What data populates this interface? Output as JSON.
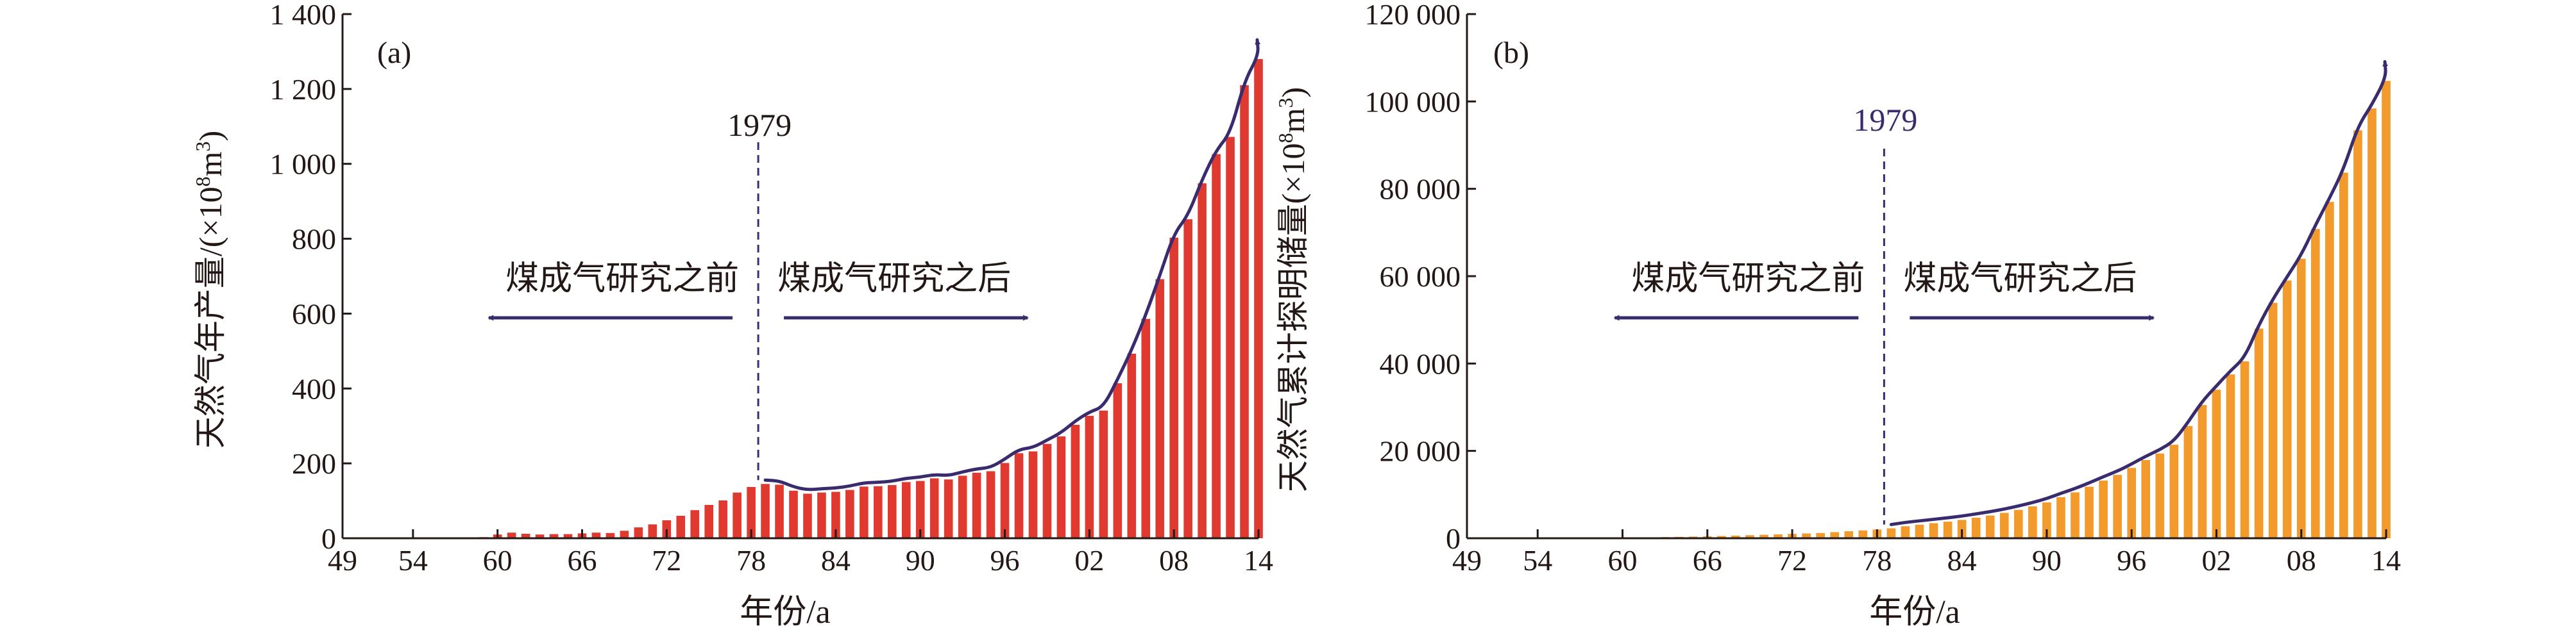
{
  "chart_data": [
    {
      "type": "bar",
      "panel_label": "(a)",
      "title": "",
      "xlabel": "年份/a",
      "ylabel": "天然气年产量/(×10⁸m³)",
      "ylabel_parts": {
        "pre": "天然气年产量/(×10",
        "sup": "8",
        "mid": "m",
        "sup2": "3",
        "post": ")"
      },
      "ylim": [
        0,
        1400
      ],
      "yticks": [
        0,
        200,
        400,
        600,
        800,
        1000,
        1200,
        1400
      ],
      "ytick_labels": [
        "0",
        "200",
        "400",
        "600",
        "800",
        "1 000",
        "1 200",
        "1 400"
      ],
      "xlim": [
        1949,
        2014
      ],
      "xticks": [
        1949,
        1954,
        1960,
        1966,
        1972,
        1978,
        1984,
        1990,
        1996,
        2002,
        2008,
        2014
      ],
      "xtick_labels": [
        "49",
        "54",
        "60",
        "66",
        "72",
        "78",
        "84",
        "90",
        "96",
        "02",
        "08",
        "14"
      ],
      "bar_color": "#e03a30",
      "arrow_color": "#3a2a6e",
      "divider": {
        "year": 1979,
        "label": "1979",
        "label_color": "#231815"
      },
      "left_note": "煤成气研究之前",
      "right_note": "煤成气研究之后",
      "x": [
        1949,
        1950,
        1951,
        1952,
        1953,
        1954,
        1955,
        1956,
        1957,
        1958,
        1959,
        1960,
        1961,
        1962,
        1963,
        1964,
        1965,
        1966,
        1967,
        1968,
        1969,
        1970,
        1971,
        1972,
        1973,
        1974,
        1975,
        1976,
        1977,
        1978,
        1979,
        1980,
        1981,
        1982,
        1983,
        1984,
        1985,
        1986,
        1987,
        1988,
        1989,
        1990,
        1991,
        1992,
        1993,
        1994,
        1995,
        1996,
        1997,
        1998,
        1999,
        2000,
        2001,
        2002,
        2003,
        2004,
        2005,
        2006,
        2007,
        2008,
        2009,
        2010,
        2011,
        2012,
        2013,
        2014
      ],
      "values": [
        0,
        0,
        0,
        0,
        0,
        0,
        0,
        0,
        1,
        1,
        3,
        10,
        15,
        12,
        10,
        11,
        11,
        13,
        15,
        14,
        20,
        29,
        37,
        48,
        60,
        75,
        89,
        101,
        122,
        137,
        145,
        143,
        127,
        119,
        122,
        124,
        129,
        138,
        139,
        142,
        150,
        153,
        160,
        157,
        167,
        175,
        179,
        201,
        227,
        232,
        252,
        272,
        303,
        327,
        341,
        414,
        493,
        586,
        692,
        803,
        852,
        948,
        1026,
        1072,
        1210,
        1280
      ]
    },
    {
      "type": "bar",
      "panel_label": "(b)",
      "title": "",
      "xlabel": "年份/a",
      "ylabel": "天然气累计探明储量(×10⁸m³)",
      "ylabel_parts": {
        "pre": "天然气累计探明储量(×10",
        "sup": "8",
        "mid": "m",
        "sup2": "3",
        "post": ")"
      },
      "ylim": [
        0,
        120000
      ],
      "yticks": [
        0,
        20000,
        40000,
        60000,
        80000,
        100000,
        120000
      ],
      "ytick_labels": [
        "0",
        "20 000",
        "40 000",
        "60 000",
        "80 000",
        "100 000",
        "120 000"
      ],
      "xlim": [
        1949,
        2014
      ],
      "xticks": [
        1949,
        1954,
        1960,
        1966,
        1972,
        1978,
        1984,
        1990,
        1996,
        2002,
        2008,
        2014
      ],
      "xtick_labels": [
        "49",
        "54",
        "60",
        "66",
        "72",
        "78",
        "84",
        "90",
        "96",
        "02",
        "08",
        "14"
      ],
      "bar_color": "#f39a2c",
      "arrow_color": "#3a2a6e",
      "divider": {
        "year": 1979,
        "label": "1979",
        "label_color": "#3a2a6e"
      },
      "left_note": "煤成气研究之前",
      "right_note": "煤成气研究之后",
      "x": [
        1949,
        1950,
        1951,
        1952,
        1953,
        1954,
        1955,
        1956,
        1957,
        1958,
        1959,
        1960,
        1961,
        1962,
        1963,
        1964,
        1965,
        1966,
        1967,
        1968,
        1969,
        1970,
        1971,
        1972,
        1973,
        1974,
        1975,
        1976,
        1977,
        1978,
        1979,
        1980,
        1981,
        1982,
        1983,
        1984,
        1985,
        1986,
        1987,
        1988,
        1989,
        1990,
        1991,
        1992,
        1993,
        1994,
        1995,
        1996,
        1997,
        1998,
        1999,
        2000,
        2001,
        2002,
        2003,
        2004,
        2005,
        2006,
        2007,
        2008,
        2009,
        2010,
        2011,
        2012,
        2013,
        2014
      ],
      "values": [
        0,
        0,
        0,
        0,
        0,
        0,
        0,
        0,
        0,
        0,
        0,
        120,
        170,
        220,
        270,
        320,
        380,
        440,
        520,
        600,
        700,
        800,
        900,
        1000,
        1100,
        1200,
        1400,
        1600,
        1800,
        2000,
        2264,
        2750,
        3100,
        3450,
        3800,
        4200,
        4700,
        5200,
        5800,
        6500,
        7300,
        8200,
        9400,
        10500,
        11800,
        13200,
        14500,
        16100,
        17900,
        19400,
        21400,
        25700,
        30500,
        34000,
        37500,
        40500,
        48000,
        53900,
        59000,
        64000,
        70800,
        77000,
        83700,
        93400,
        98400,
        104700
      ]
    }
  ]
}
